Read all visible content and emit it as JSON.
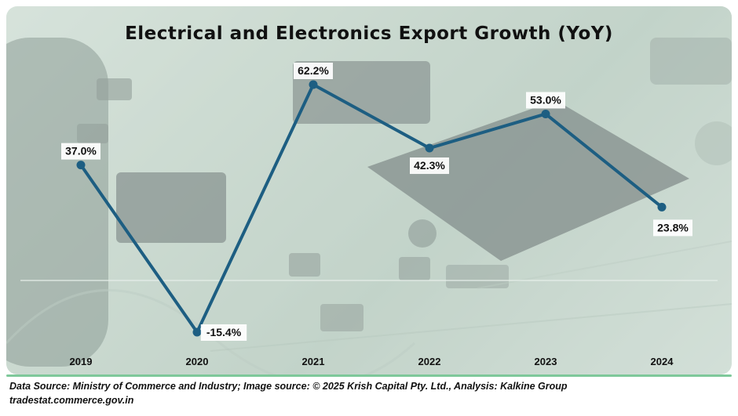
{
  "chart_data": {
    "type": "line",
    "title": "Electrical and Electronics Export Growth (YoY)",
    "categories": [
      "2019",
      "2020",
      "2021",
      "2022",
      "2023",
      "2024"
    ],
    "series": [
      {
        "values": [
          37.0,
          -15.4,
          62.2,
          42.3,
          53.0,
          23.8
        ]
      }
    ],
    "data_labels": [
      "37.0%",
      "-15.4%",
      "62.2%",
      "42.3%",
      "53.0%",
      "23.8%"
    ],
    "xlabel": "",
    "ylabel": "",
    "ylim": [
      -20,
      70
    ],
    "grid": false,
    "legend": "none",
    "line_color": "#1d5e82"
  },
  "footer": {
    "source_line": "Data Source: Ministry of Commerce and Industry; Image source: © 2025 Krish Capital Pty. Ltd., Analysis: Kalkine Group",
    "url_line": "tradestat.commerce.gov.in"
  }
}
